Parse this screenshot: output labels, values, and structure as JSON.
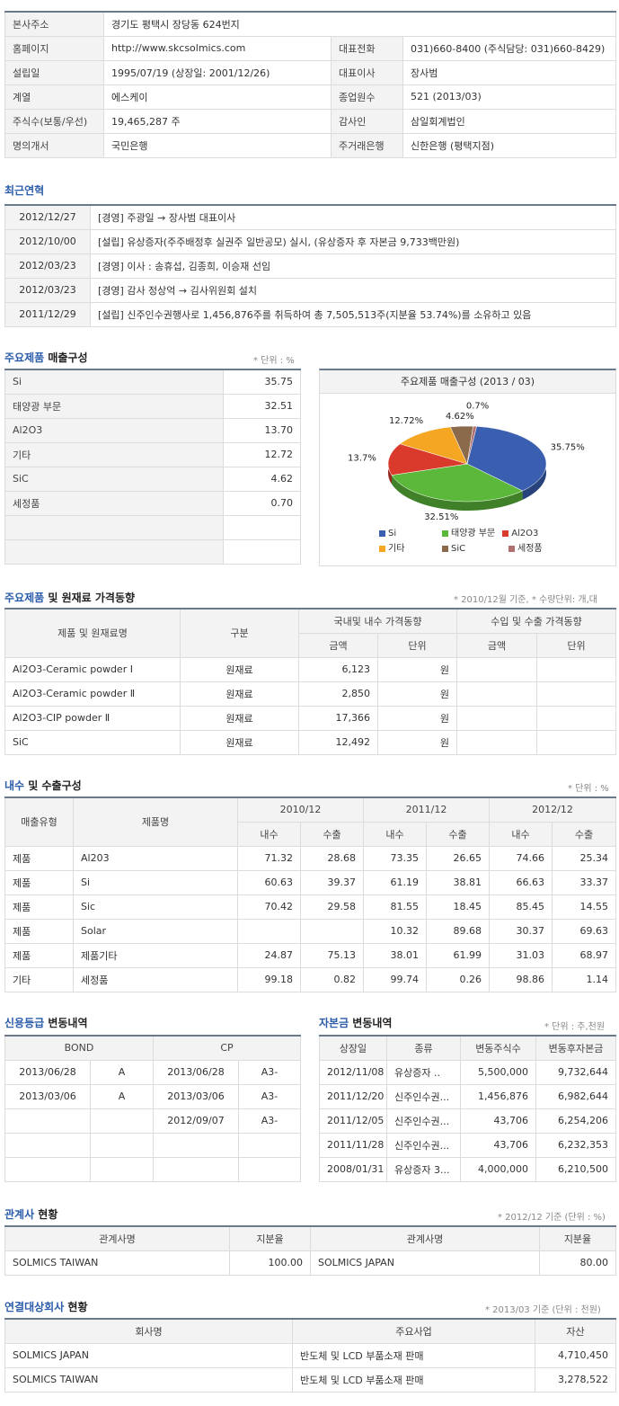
{
  "info": {
    "rows": [
      [
        [
          "본사주소",
          "경기도 평택시 장당동 624번지"
        ]
      ],
      [
        [
          "홈페이지",
          "http://www.skcsolmics.com"
        ],
        [
          "대표전화",
          "031)660-8400 (주식담당: 031)660-8429)"
        ]
      ],
      [
        [
          "설립일",
          "1995/07/19 (상장일: 2001/12/26)"
        ],
        [
          "대표이사",
          "장사범"
        ]
      ],
      [
        [
          "계열",
          "에스케이"
        ],
        [
          "종업원수",
          "521 (2013/03)"
        ]
      ],
      [
        [
          "주식수(보통/우선)",
          "19,465,287 주"
        ],
        [
          "감사인",
          "삼일회계법인"
        ]
      ],
      [
        [
          "명의개서",
          "국민은행"
        ],
        [
          "주거래은행",
          "신한은행 (평택지점)"
        ]
      ]
    ]
  },
  "history": {
    "title": "최근연혁",
    "items": [
      {
        "date": "2012/12/27",
        "text": "[경영] 주광일 → 장사범 대표이사"
      },
      {
        "date": "2012/10/00",
        "text": "[설립] 유상증자(주주배정후 실권주 일반공모) 실시, (유상증자 후 자본금 9,733백만원)"
      },
      {
        "date": "2012/03/23",
        "text": "[경영] 이사 : 송휴섭, 김종희, 이승재 선임"
      },
      {
        "date": "2012/03/23",
        "text": "[경영] 감사 정상억 → 김사위원회 설치"
      },
      {
        "date": "2011/12/29",
        "text": "[설립] 신주인수권행사로 1,456,876주를 취득하여 총 7,505,513주(지분율 53.74%)를 소유하고 있음"
      }
    ]
  },
  "products": {
    "title_blue": "주요제품",
    "title_rest": " 매출구성",
    "unit": "* 단위 : %",
    "rows": [
      {
        "name": "Si",
        "value": "35.75"
      },
      {
        "name": "태양광 부문",
        "value": "32.51"
      },
      {
        "name": "Al2O3",
        "value": "13.70"
      },
      {
        "name": "기타",
        "value": "12.72"
      },
      {
        "name": "SiC",
        "value": "4.62"
      },
      {
        "name": "세정품",
        "value": "0.70"
      }
    ]
  },
  "chart_data": {
    "type": "pie",
    "title": "주요제품 매출구성 (2013 / 03)",
    "categories": [
      "Si",
      "태양광 부문",
      "Al2O3",
      "기타",
      "SiC",
      "세정품"
    ],
    "values": [
      35.75,
      32.51,
      13.7,
      12.72,
      4.62,
      0.7
    ],
    "labels": [
      "35.75%",
      "32.51%",
      "13.7%",
      "12.72%",
      "4.62%",
      "0.7%"
    ],
    "colors": [
      "#3a5fb0",
      "#5cb83a",
      "#d93a2b",
      "#f5a623",
      "#8a6a4a",
      "#b07070"
    ],
    "legend_position": "bottom"
  },
  "prices": {
    "title_blue": "주요제품",
    "title_rest": " 및 원재료 가격동향",
    "note": "* 2010/12월 기준, * 수량단위: 개,대",
    "headers": {
      "name": "제품 및 원재료명",
      "type": "구분",
      "domestic": "국내및 내수 가격동향",
      "export": "수입 및 수출 가격동향",
      "amount": "금액",
      "unit": "단위"
    },
    "rows": [
      {
        "name": "Al2O3-Ceramic powder Ⅰ",
        "type": "원재료",
        "amount": "6,123",
        "unit": "원",
        "ex_amount": "",
        "ex_unit": ""
      },
      {
        "name": "Al2O3-Ceramic powder Ⅱ",
        "type": "원재료",
        "amount": "2,850",
        "unit": "원",
        "ex_amount": "",
        "ex_unit": ""
      },
      {
        "name": "Al2O3-CIP powder Ⅱ",
        "type": "원재료",
        "amount": "17,366",
        "unit": "원",
        "ex_amount": "",
        "ex_unit": ""
      },
      {
        "name": "SiC",
        "type": "원재료",
        "amount": "12,492",
        "unit": "원",
        "ex_amount": "",
        "ex_unit": ""
      }
    ]
  },
  "export_mix": {
    "title_blue": "내수",
    "title_rest": " 및 수출구성",
    "unit": "* 단위 : %",
    "headers": {
      "type": "매출유형",
      "name": "제품명",
      "years": [
        "2010/12",
        "2011/12",
        "2012/12"
      ],
      "dom": "내수",
      "exp": "수출"
    },
    "rows": [
      {
        "type": "제품",
        "name": "Al203",
        "v": [
          "71.32",
          "28.68",
          "73.35",
          "26.65",
          "74.66",
          "25.34"
        ]
      },
      {
        "type": "제품",
        "name": "Si",
        "v": [
          "60.63",
          "39.37",
          "61.19",
          "38.81",
          "66.63",
          "33.37"
        ]
      },
      {
        "type": "제품",
        "name": "Sic",
        "v": [
          "70.42",
          "29.58",
          "81.55",
          "18.45",
          "85.45",
          "14.55"
        ]
      },
      {
        "type": "제품",
        "name": "Solar",
        "v": [
          "",
          "",
          "10.32",
          "89.68",
          "30.37",
          "69.63"
        ]
      },
      {
        "type": "제품",
        "name": "제품기타",
        "v": [
          "24.87",
          "75.13",
          "38.01",
          "61.99",
          "31.03",
          "68.97"
        ]
      },
      {
        "type": "기타",
        "name": "세정품",
        "v": [
          "99.18",
          "0.82",
          "99.74",
          "0.26",
          "98.86",
          "1.14"
        ]
      }
    ]
  },
  "credit": {
    "title_blue": "신용등급",
    "title_rest": " 변동내역",
    "headers": {
      "bond": "BOND",
      "cp": "CP"
    },
    "rows": [
      {
        "bond_date": "2013/06/28",
        "bond": "A",
        "cp_date": "2013/06/28",
        "cp": "A3-"
      },
      {
        "bond_date": "2013/03/06",
        "bond": "A",
        "cp_date": "2013/03/06",
        "cp": "A3-"
      },
      {
        "bond_date": "",
        "bond": "",
        "cp_date": "2012/09/07",
        "cp": "A3-"
      },
      {
        "bond_date": "",
        "bond": "",
        "cp_date": "",
        "cp": ""
      },
      {
        "bond_date": "",
        "bond": "",
        "cp_date": "",
        "cp": ""
      }
    ]
  },
  "capital": {
    "title_blue": "자본금",
    "title_rest": " 변동내역",
    "unit": "* 단위 : 주,천원",
    "headers": [
      "상장일",
      "종류",
      "변동주식수",
      "변동후자본금"
    ],
    "rows": [
      [
        "2012/11/08",
        "유상증자 ..",
        "5,500,000",
        "9,732,644"
      ],
      [
        "2011/12/20",
        "신주인수권...",
        "1,456,876",
        "6,982,644"
      ],
      [
        "2011/12/05",
        "신주인수권...",
        "43,706",
        "6,254,206"
      ],
      [
        "2011/11/28",
        "신주인수권...",
        "43,706",
        "6,232,353"
      ],
      [
        "2008/01/31",
        "유상증자 3...",
        "4,000,000",
        "6,210,500"
      ]
    ]
  },
  "affiliates": {
    "title_blue": "관계사",
    "title_rest": " 현황",
    "note": "* 2012/12 기준 (단위 : %)",
    "headers": {
      "name": "관계사명",
      "share": "지분율"
    },
    "rows": [
      {
        "name1": "SOLMICS TAIWAN",
        "share1": "100.00",
        "name2": "SOLMICS JAPAN",
        "share2": "80.00"
      }
    ]
  },
  "consolidated": {
    "title_blue": "연결대상회사",
    "title_rest": " 현황",
    "note": "* 2013/03 기준 (단위 : 천원)",
    "headers": {
      "name": "회사명",
      "biz": "주요사업",
      "asset": "자산"
    },
    "rows": [
      {
        "name": "SOLMICS JAPAN",
        "biz": "반도체 및 LCD 부품소재 판매",
        "asset": "4,710,450"
      },
      {
        "name": "SOLMICS TAIWAN",
        "biz": "반도체 및 LCD 부품소재 판매",
        "asset": "3,278,522"
      }
    ]
  }
}
